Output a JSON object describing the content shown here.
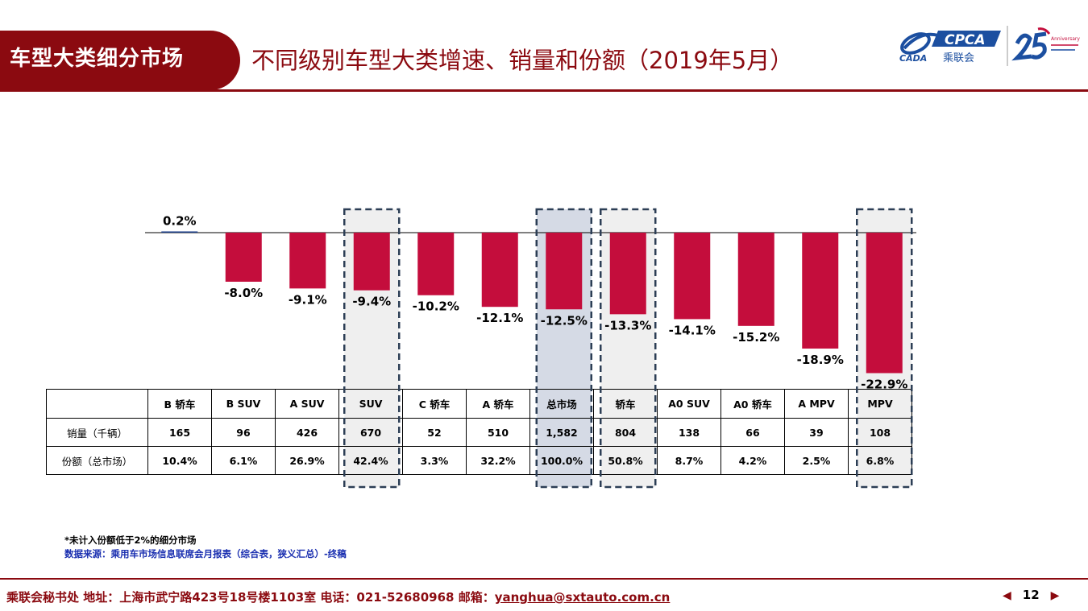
{
  "header": {
    "section_title": "车型大类细分市场",
    "subtitle": "不同级别车型大类增速、销量和份额（2019年5月）",
    "logo_text": "CPCA",
    "logo_cn": "乘联会",
    "logo_cada": "CADA",
    "anniversary": "Anniversary"
  },
  "chart_data": {
    "type": "bar",
    "categories": [
      "B 轿车",
      "B SUV",
      "A SUV",
      "SUV",
      "C 轿车",
      "A 轿车",
      "总市场",
      "轿车",
      "A0 SUV",
      "A0 轿车",
      "A MPV",
      "MPV"
    ],
    "values": [
      0.2,
      -8.0,
      -9.1,
      -9.4,
      -10.2,
      -12.1,
      -12.5,
      -13.3,
      -14.1,
      -15.2,
      -18.9,
      -22.9
    ],
    "value_labels": [
      "0.2%",
      "-8.0%",
      "-9.1%",
      "-9.4%",
      "-10.2%",
      "-12.1%",
      "-12.5%",
      "-13.3%",
      "-14.1%",
      "-15.2%",
      "-18.9%",
      "-22.9%"
    ],
    "ylim": [
      -23.5,
      1
    ],
    "grid": false,
    "bar_color": "#c40d3c",
    "highlighted": [
      "SUV",
      "总市场",
      "轿车",
      "MPV"
    ],
    "table": {
      "rows": [
        {
          "label": "销量（千辆）",
          "values": [
            "165",
            "96",
            "426",
            "670",
            "52",
            "510",
            "1,582",
            "804",
            "138",
            "66",
            "39",
            "108"
          ]
        },
        {
          "label": "份额（总市场）",
          "values": [
            "10.4%",
            "6.1%",
            "26.9%",
            "42.4%",
            "3.3%",
            "32.2%",
            "100.0%",
            "50.8%",
            "8.7%",
            "4.2%",
            "2.5%",
            "6.8%"
          ]
        }
      ]
    }
  },
  "notes": {
    "note": "*未计入份额低于2%的细分市场",
    "source": "数据来源：乘用车市场信息联席会月报表（综合表，狭义汇总）-终稿"
  },
  "footer": {
    "org": "乘联会秘书处",
    "address": "地址：上海市武宁路423号18号楼1103室",
    "phone": "电话：021-52680968",
    "email_label": "邮箱：",
    "email": "yanghua@sxtauto.com.cn",
    "page": "12",
    "prev_icon": "◀",
    "next_icon": "▶"
  },
  "colors": {
    "brand": "#8b0a10",
    "bar": "#c40d3c",
    "highlight_gray": "#efefef",
    "highlight_blue": "#d5dae5",
    "dash": "#2c3e55"
  }
}
